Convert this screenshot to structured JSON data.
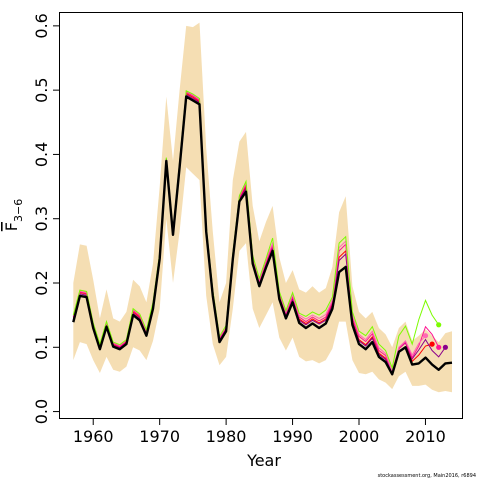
{
  "chart_data": {
    "type": "line",
    "xlabel": "Year",
    "ylabel": "F",
    "ylabel_subscript": "3−6",
    "credit": "stockassessment.org, Main2016, r6894",
    "xlim": [
      1955,
      2015.5
    ],
    "ylim": [
      -0.01,
      0.62
    ],
    "x_ticks": [
      1960,
      1970,
      1980,
      1990,
      2000,
      2010
    ],
    "y_ticks": [
      0.0,
      0.1,
      0.2,
      0.3,
      0.4,
      0.5,
      0.6
    ],
    "y_tick_labels": [
      "0.0",
      "0.1",
      "0.2",
      "0.3",
      "0.4",
      "0.5",
      "0.6"
    ],
    "grid": false,
    "legend": "none",
    "colors": {
      "band": "#f5deb3",
      "main": "#000000",
      "retro": [
        "#ff0000",
        "#8b008b",
        "#ff1493",
        "#ff69b4",
        "#7cfc00"
      ]
    },
    "years": [
      1957,
      1958,
      1959,
      1960,
      1961,
      1962,
      1963,
      1964,
      1965,
      1966,
      1967,
      1968,
      1969,
      1970,
      1971,
      1972,
      1973,
      1974,
      1975,
      1976,
      1977,
      1978,
      1979,
      1980,
      1981,
      1982,
      1983,
      1984,
      1985,
      1986,
      1987,
      1988,
      1989,
      1990,
      1991,
      1992,
      1993,
      1994,
      1995,
      1996,
      1997,
      1998,
      1999,
      2000,
      2001,
      2002,
      2003,
      2004,
      2005,
      2006,
      2007,
      2008,
      2009,
      2010,
      2011,
      2012,
      2013,
      2014
    ],
    "main": [
      0.139,
      0.18,
      0.178,
      0.13,
      0.097,
      0.132,
      0.101,
      0.097,
      0.105,
      0.15,
      0.142,
      0.118,
      0.16,
      0.238,
      0.39,
      0.275,
      0.38,
      0.49,
      0.484,
      0.478,
      0.28,
      0.18,
      0.108,
      0.125,
      0.237,
      0.327,
      0.342,
      0.23,
      0.195,
      0.224,
      0.25,
      0.175,
      0.145,
      0.17,
      0.138,
      0.13,
      0.137,
      0.13,
      0.137,
      0.16,
      0.217,
      0.225,
      0.135,
      0.105,
      0.097,
      0.108,
      0.085,
      0.077,
      0.058,
      0.093,
      0.1,
      0.073,
      0.075,
      0.084,
      0.073,
      0.065,
      0.075,
      0.076
    ],
    "band_upper": [
      0.2,
      0.26,
      0.258,
      0.205,
      0.145,
      0.19,
      0.145,
      0.14,
      0.155,
      0.205,
      0.195,
      0.17,
      0.23,
      0.35,
      0.49,
      0.39,
      0.5,
      0.6,
      0.598,
      0.605,
      0.41,
      0.28,
      0.17,
      0.2,
      0.36,
      0.42,
      0.435,
      0.32,
      0.265,
      0.295,
      0.32,
      0.24,
      0.2,
      0.22,
      0.19,
      0.185,
      0.195,
      0.185,
      0.192,
      0.225,
      0.31,
      0.335,
      0.195,
      0.155,
      0.145,
      0.155,
      0.13,
      0.12,
      0.1,
      0.13,
      0.14,
      0.11,
      0.118,
      0.128,
      0.118,
      0.108,
      0.122,
      0.125
    ],
    "band_lower": [
      0.08,
      0.108,
      0.105,
      0.08,
      0.06,
      0.085,
      0.065,
      0.062,
      0.07,
      0.1,
      0.095,
      0.08,
      0.11,
      0.16,
      0.3,
      0.2,
      0.28,
      0.38,
      0.37,
      0.36,
      0.18,
      0.105,
      0.072,
      0.085,
      0.16,
      0.25,
      0.262,
      0.16,
      0.13,
      0.15,
      0.17,
      0.115,
      0.095,
      0.115,
      0.085,
      0.078,
      0.08,
      0.075,
      0.08,
      0.098,
      0.14,
      0.14,
      0.08,
      0.06,
      0.058,
      0.062,
      0.05,
      0.045,
      0.035,
      0.055,
      0.062,
      0.04,
      0.04,
      0.042,
      0.034,
      0.03,
      0.032,
      0.03
    ],
    "retros": [
      {
        "color": "#ff0000",
        "x": [
          2005,
          2006,
          2007,
          2008,
          2009,
          2010,
          2011
        ],
        "values": [
          0.062,
          0.098,
          0.107,
          0.078,
          0.088,
          0.102,
          0.105
        ]
      },
      {
        "color": "#8b008b",
        "x": [
          2005,
          2006,
          2007,
          2008,
          2009,
          2010,
          2011,
          2012,
          2013
        ],
        "values": [
          0.062,
          0.098,
          0.107,
          0.082,
          0.096,
          0.112,
          0.095,
          0.085,
          0.1
        ]
      },
      {
        "color": "#ff1493",
        "x": [
          2005,
          2006,
          2007,
          2008,
          2009,
          2010,
          2011,
          2012
        ],
        "values": [
          0.062,
          0.098,
          0.108,
          0.084,
          0.102,
          0.132,
          0.12,
          0.1
        ]
      },
      {
        "color": "#ff69b4",
        "x": [
          2005,
          2006,
          2007,
          2008,
          2009,
          2010
        ],
        "values": [
          0.063,
          0.1,
          0.11,
          0.088,
          0.106,
          0.118
        ]
      },
      {
        "color": "#7cfc00",
        "x": [
          2005,
          2006,
          2007,
          2008,
          2009,
          2010,
          2011,
          2012
        ],
        "values": [
          0.068,
          0.118,
          0.133,
          0.105,
          0.143,
          0.173,
          0.15,
          0.135
        ]
      }
    ],
    "retro_common": [
      [
        0.145,
        0.185,
        0.183,
        0.134,
        0.101,
        0.136,
        0.104,
        0.1,
        0.108,
        0.155,
        0.147,
        0.122,
        0.165,
        0.242,
        0.392,
        0.278,
        0.384,
        0.495,
        0.489,
        0.482,
        0.284,
        0.184,
        0.112,
        0.129,
        0.241,
        0.331,
        0.35,
        0.236,
        0.2,
        0.23,
        0.256,
        0.18,
        0.15,
        0.176,
        0.144,
        0.137,
        0.144,
        0.138,
        0.144,
        0.167,
        0.24,
        0.25,
        0.142,
        0.112,
        0.104,
        0.116,
        0.091,
        0.083
      ],
      [
        0.143,
        0.183,
        0.181,
        0.133,
        0.1,
        0.135,
        0.103,
        0.099,
        0.107,
        0.153,
        0.145,
        0.121,
        0.163,
        0.24,
        0.391,
        0.277,
        0.383,
        0.493,
        0.487,
        0.481,
        0.283,
        0.183,
        0.111,
        0.128,
        0.24,
        0.33,
        0.347,
        0.234,
        0.199,
        0.228,
        0.254,
        0.178,
        0.149,
        0.174,
        0.142,
        0.135,
        0.142,
        0.136,
        0.142,
        0.165,
        0.235,
        0.245,
        0.14,
        0.11,
        0.102,
        0.114,
        0.089,
        0.081
      ],
      [
        0.147,
        0.186,
        0.184,
        0.136,
        0.102,
        0.137,
        0.106,
        0.101,
        0.11,
        0.157,
        0.149,
        0.124,
        0.167,
        0.244,
        0.393,
        0.279,
        0.386,
        0.497,
        0.491,
        0.484,
        0.286,
        0.186,
        0.114,
        0.131,
        0.243,
        0.333,
        0.353,
        0.238,
        0.202,
        0.232,
        0.259,
        0.182,
        0.152,
        0.178,
        0.147,
        0.14,
        0.147,
        0.141,
        0.147,
        0.17,
        0.25,
        0.26,
        0.147,
        0.117,
        0.109,
        0.121,
        0.095,
        0.087
      ],
      [
        0.149,
        0.188,
        0.186,
        0.137,
        0.104,
        0.139,
        0.107,
        0.103,
        0.111,
        0.159,
        0.151,
        0.126,
        0.169,
        0.246,
        0.394,
        0.281,
        0.388,
        0.498,
        0.493,
        0.486,
        0.288,
        0.188,
        0.116,
        0.133,
        0.245,
        0.335,
        0.356,
        0.241,
        0.205,
        0.236,
        0.262,
        0.185,
        0.155,
        0.182,
        0.15,
        0.144,
        0.15,
        0.145,
        0.151,
        0.174,
        0.255,
        0.265,
        0.15,
        0.12,
        0.112,
        0.125,
        0.099,
        0.09
      ],
      [
        0.15,
        0.189,
        0.187,
        0.138,
        0.105,
        0.14,
        0.108,
        0.104,
        0.112,
        0.16,
        0.152,
        0.127,
        0.17,
        0.247,
        0.395,
        0.282,
        0.389,
        0.499,
        0.494,
        0.487,
        0.289,
        0.189,
        0.117,
        0.134,
        0.246,
        0.336,
        0.358,
        0.243,
        0.207,
        0.238,
        0.27,
        0.187,
        0.157,
        0.185,
        0.153,
        0.148,
        0.155,
        0.15,
        0.158,
        0.178,
        0.262,
        0.272,
        0.155,
        0.125,
        0.118,
        0.132,
        0.105,
        0.095
      ]
    ]
  }
}
